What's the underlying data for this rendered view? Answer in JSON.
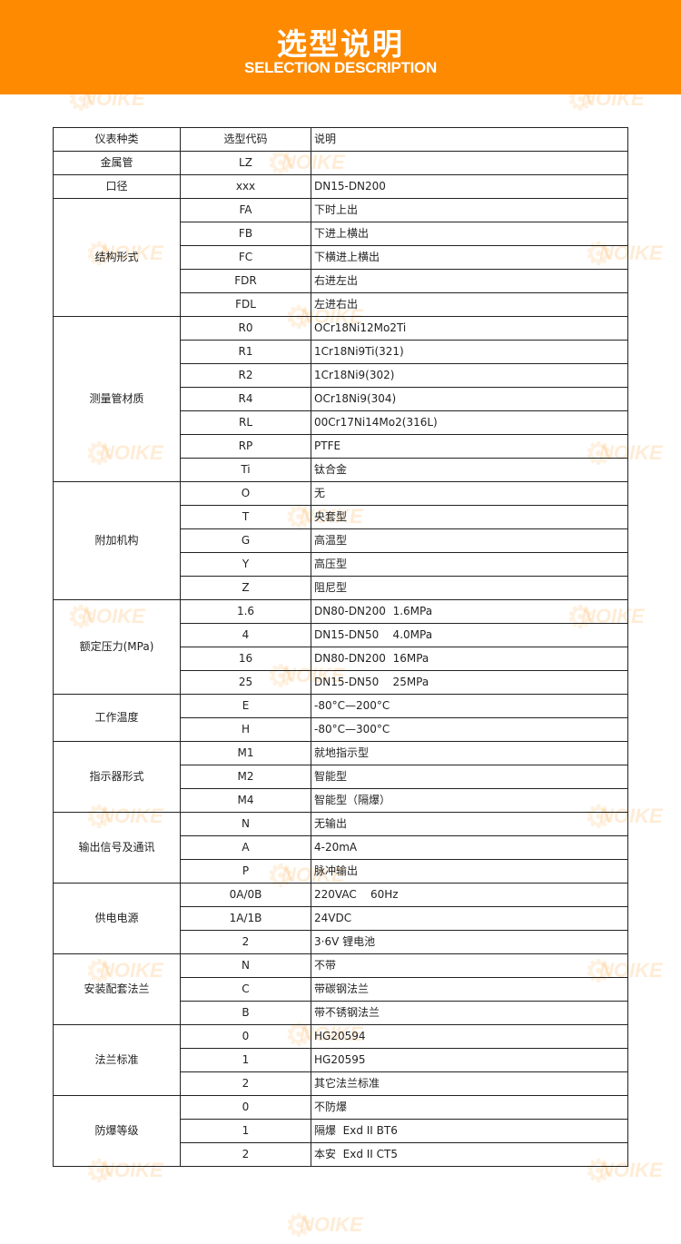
{
  "header": {
    "title": "选型说明",
    "subtitle": "SELECTION DESCRIPTION",
    "color": "#fd8a00"
  },
  "watermark": "NOIKE",
  "table": {
    "columns": [
      "仪表种类",
      "选型代码",
      "说明"
    ],
    "groups": [
      {
        "category": "金属管",
        "rows": [
          [
            "LZ",
            ""
          ]
        ]
      },
      {
        "category": "口径",
        "rows": [
          [
            "xxx",
            "DN15-DN200"
          ]
        ]
      },
      {
        "category": "结构形式",
        "rows": [
          [
            "FA",
            "下时上出"
          ],
          [
            "FB",
            "下进上横出"
          ],
          [
            "FC",
            "下横进上横出"
          ],
          [
            "FDR",
            "右进左出"
          ],
          [
            "FDL",
            "左进右出"
          ]
        ]
      },
      {
        "category": "测量管材质",
        "rows": [
          [
            "R0",
            "OCr18Ni12Mo2Ti"
          ],
          [
            "R1",
            "1Cr18Ni9Ti(321)"
          ],
          [
            "R2",
            "1Cr18Ni9(302)"
          ],
          [
            "R4",
            "OCr18Ni9(304)"
          ],
          [
            "RL",
            "00Cr17Ni14Mo2(316L)"
          ],
          [
            "RP",
            "PTFE"
          ],
          [
            "Ti",
            "钛合金"
          ]
        ]
      },
      {
        "category": "附加机构",
        "rows": [
          [
            "O",
            "无"
          ],
          [
            "T",
            "央套型"
          ],
          [
            "G",
            "高温型"
          ],
          [
            "Y",
            "高压型"
          ],
          [
            "Z",
            "阻尼型"
          ]
        ]
      },
      {
        "category": "额定压力(MPa)",
        "rows": [
          [
            "1.6",
            "DN80-DN200  1.6MPa"
          ],
          [
            "4",
            "DN15-DN50    4.0MPa"
          ],
          [
            "16",
            "DN80-DN200  16MPa"
          ],
          [
            "25",
            "DN15-DN50    25MPa"
          ]
        ]
      },
      {
        "category": "工作温度",
        "rows": [
          [
            "E",
            "-80°C—200°C"
          ],
          [
            "H",
            "-80°C—300°C"
          ]
        ]
      },
      {
        "category": "指示器形式",
        "rows": [
          [
            "M1",
            "就地指示型"
          ],
          [
            "M2",
            "智能型"
          ],
          [
            "M4",
            "智能型（隔爆）"
          ]
        ]
      },
      {
        "category": "输出信号及通讯",
        "rows": [
          [
            "N",
            "无输出"
          ],
          [
            "A",
            "4-20mA"
          ],
          [
            "P",
            "脉冲输出"
          ]
        ]
      },
      {
        "category": "供电电源",
        "rows": [
          [
            "0A/0B",
            "220VAC    60Hz"
          ],
          [
            "1A/1B",
            "24VDC"
          ],
          [
            "2",
            "3·6V 锂电池"
          ]
        ]
      },
      {
        "category": "安装配套法兰",
        "rows": [
          [
            "N",
            "不带"
          ],
          [
            "C",
            "带碳钢法兰"
          ],
          [
            "B",
            "带不锈钢法兰"
          ]
        ]
      },
      {
        "category": "法兰标准",
        "rows": [
          [
            "0",
            "HG20594"
          ],
          [
            "1",
            "HG20595"
          ],
          [
            "2",
            "其它法兰标准"
          ]
        ]
      },
      {
        "category": "防爆等级",
        "rows": [
          [
            "0",
            "不防爆"
          ],
          [
            "1",
            "隔爆  Exd II BT6"
          ],
          [
            "2",
            "本安  Exd II CT5"
          ]
        ]
      }
    ]
  }
}
